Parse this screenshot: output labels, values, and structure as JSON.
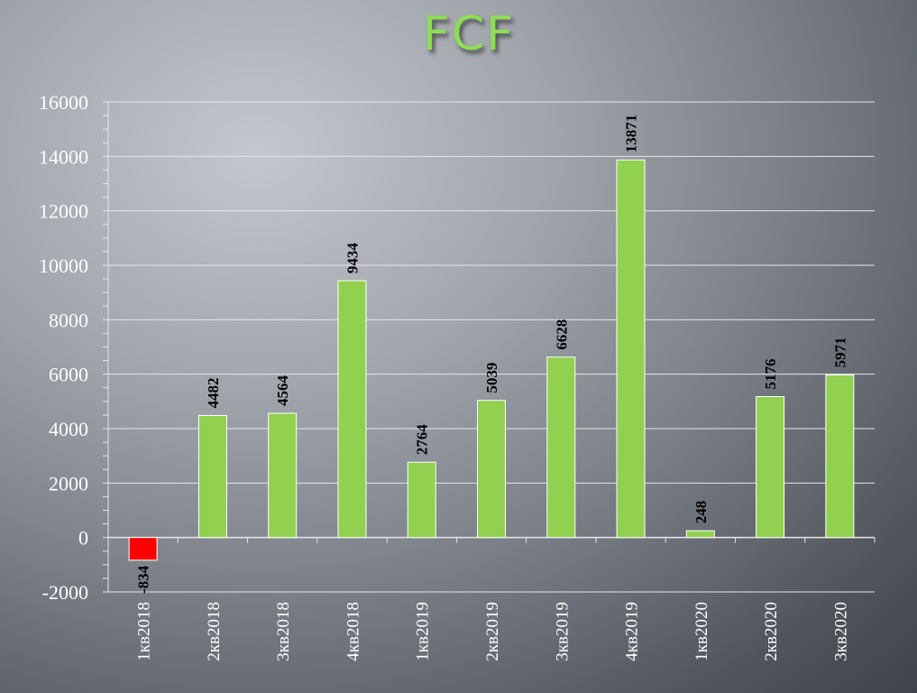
{
  "slide": {
    "title": "FCF"
  },
  "colors": {
    "positive_bar": "#92d050",
    "negative_bar": "#ff0000",
    "grid": "#e4e6e9",
    "axis_text": "#ffffff",
    "label_text": "#000000"
  },
  "chart_data": {
    "type": "bar",
    "title": "FCF",
    "xlabel": "",
    "ylabel": "",
    "categories": [
      "1кв2018",
      "2кв2018",
      "3кв2018",
      "4кв2018",
      "1кв2019",
      "2кв2019",
      "3кв2019",
      "4кв2019",
      "1кв2020",
      "2кв2020",
      "3кв2020"
    ],
    "values": [
      -834,
      4482,
      4564,
      9434,
      2764,
      5039,
      6628,
      13871,
      248,
      5176,
      5971
    ],
    "ylim": [
      -2000,
      16000
    ],
    "yticks": [
      -2000,
      0,
      2000,
      4000,
      6000,
      8000,
      10000,
      12000,
      14000,
      16000
    ],
    "grid": true,
    "legend": "none"
  }
}
